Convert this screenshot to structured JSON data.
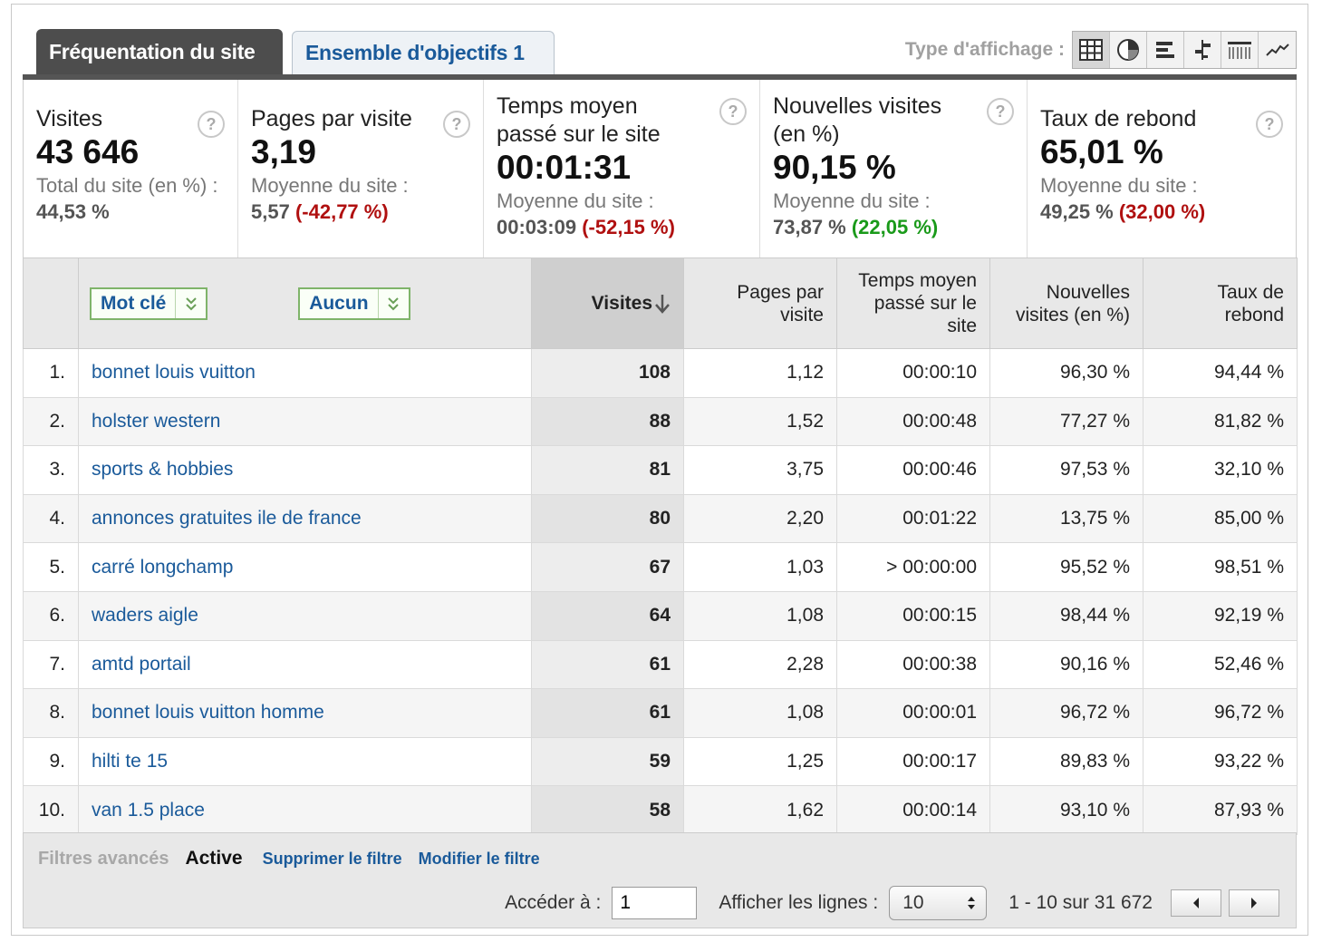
{
  "tabs": [
    {
      "label": "Fréquentation du site",
      "active": true
    },
    {
      "label": "Ensemble d'objectifs 1",
      "active": false
    }
  ],
  "display_type": {
    "label": "Type d'affichage :",
    "icons": [
      "table-view-icon",
      "pie-view-icon",
      "bar-view-icon",
      "comparison-view-icon",
      "pivot-view-icon",
      "trend-view-icon"
    ],
    "selected": 0
  },
  "summary": {
    "visits": {
      "title": "Visites",
      "value": "43 646",
      "sub": "Total du site (en %) : ",
      "sub_value": "44,53 %"
    },
    "pages": {
      "title": "Pages par visite",
      "value": "3,19",
      "sub": "Moyenne du site :",
      "avg": "5,57",
      "delta": "(-42,77 %)"
    },
    "time": {
      "title": "Temps moyen passé sur le site",
      "value": "00:01:31",
      "sub": "Moyenne du site :",
      "avg": "00:03:09",
      "delta": "(-52,15 %)"
    },
    "new": {
      "title": "Nouvelles visites (en %)",
      "value": "90,15 %",
      "sub": "Moyenne du site :",
      "avg": "73,87 %",
      "delta": "(22,05 %)"
    },
    "bounce": {
      "title": "Taux de rebond",
      "value": "65,01 %",
      "sub": "Moyenne du site :",
      "avg": "49,25 %",
      "delta": "(32,00 %)"
    },
    "help_glyph": "?"
  },
  "table": {
    "dimension_primary": "Mot clé",
    "dimension_secondary": "Aucun",
    "headers": {
      "visits": "Visites",
      "pages": "Pages par visite",
      "time": "Temps moyen passé sur le site",
      "new": "Nouvelles visites (en %)",
      "bounce": "Taux de rebond"
    },
    "rows": [
      {
        "idx": "1.",
        "keyword": "bonnet louis vuitton",
        "visits": "108",
        "pages": "1,12",
        "time": "00:00:10",
        "new": "96,30 %",
        "bounce": "94,44 %"
      },
      {
        "idx": "2.",
        "keyword": "holster western",
        "visits": "88",
        "pages": "1,52",
        "time": "00:00:48",
        "new": "77,27 %",
        "bounce": "81,82 %"
      },
      {
        "idx": "3.",
        "keyword": "sports & hobbies",
        "visits": "81",
        "pages": "3,75",
        "time": "00:00:46",
        "new": "97,53 %",
        "bounce": "32,10 %"
      },
      {
        "idx": "4.",
        "keyword": "annonces gratuites ile de france",
        "visits": "80",
        "pages": "2,20",
        "time": "00:01:22",
        "new": "13,75 %",
        "bounce": "85,00 %"
      },
      {
        "idx": "5.",
        "keyword": "carré longchamp",
        "visits": "67",
        "pages": "1,03",
        "time": "> 00:00:00",
        "new": "95,52 %",
        "bounce": "98,51 %"
      },
      {
        "idx": "6.",
        "keyword": "waders aigle",
        "visits": "64",
        "pages": "1,08",
        "time": "00:00:15",
        "new": "98,44 %",
        "bounce": "92,19 %"
      },
      {
        "idx": "7.",
        "keyword": "amtd portail",
        "visits": "61",
        "pages": "2,28",
        "time": "00:00:38",
        "new": "90,16 %",
        "bounce": "52,46 %"
      },
      {
        "idx": "8.",
        "keyword": "bonnet louis vuitton homme",
        "visits": "61",
        "pages": "1,08",
        "time": "00:00:01",
        "new": "96,72 %",
        "bounce": "96,72 %"
      },
      {
        "idx": "9.",
        "keyword": "hilti te 15",
        "visits": "59",
        "pages": "1,25",
        "time": "00:00:17",
        "new": "89,83 %",
        "bounce": "93,22 %"
      },
      {
        "idx": "10.",
        "keyword": "van 1.5 place",
        "visits": "58",
        "pages": "1,62",
        "time": "00:00:14",
        "new": "93,10 %",
        "bounce": "87,93 %"
      }
    ]
  },
  "footer": {
    "filters_label": "Filtres avancés",
    "filters_status": "Active",
    "remove_filter": "Supprimer le filtre",
    "edit_filter": "Modifier le filtre",
    "goto_label": "Accéder à :",
    "goto_value": "1",
    "rows_label": "Afficher les lignes :",
    "rows_value": "10",
    "range": "1 - 10 sur 31 672"
  }
}
